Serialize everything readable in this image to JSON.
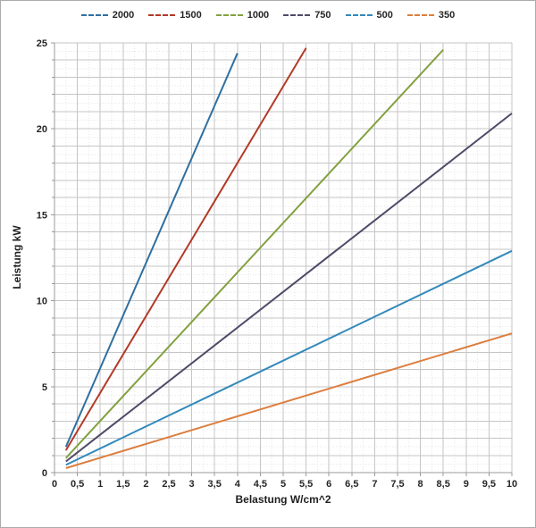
{
  "chart": {
    "background_color": "#FFFFFF",
    "border_color": "#ABABAB",
    "axis_line_color": "#9B9B9B",
    "major_grid_color": "#C6C6C6",
    "minor_grid_color": "#E6E6E6",
    "tick_label_color": "#262626"
  },
  "chart_data": {
    "type": "line",
    "title": "",
    "xlabel": "Belastung W/cm^2",
    "ylabel": "Leistung kW",
    "xlim": [
      0,
      10
    ],
    "ylim": [
      0,
      25
    ],
    "x_tick_step": 0.5,
    "x_tick_labels": [
      "0",
      "0,5",
      "1",
      "1,5",
      "2",
      "2,5",
      "3",
      "3,5",
      "4",
      "4,5",
      "5",
      "5,5",
      "6",
      "6,5",
      "7",
      "7,5",
      "8",
      "8,5",
      "9",
      "9,5",
      "10"
    ],
    "y_tick_labels": [
      "0",
      "5",
      "10",
      "15",
      "20",
      "25"
    ],
    "y_label_step": 5,
    "grid": {
      "major_x_step": 0.5,
      "major_y_step": 1,
      "minor_x_step": 0.25,
      "minor_y_step": 0.5,
      "grid_on": true
    },
    "legend_position": "top-center",
    "series": [
      {
        "name": "2000",
        "color": "#2F6F9F",
        "points": [
          [
            0.25,
            1.5
          ],
          [
            4.0,
            24.4
          ]
        ]
      },
      {
        "name": "1500",
        "color": "#B23A27",
        "points": [
          [
            0.25,
            1.3
          ],
          [
            5.5,
            24.7
          ]
        ]
      },
      {
        "name": "1000",
        "color": "#83A140",
        "points": [
          [
            0.25,
            0.85
          ],
          [
            8.5,
            24.6
          ]
        ]
      },
      {
        "name": "750",
        "color": "#4F4A68",
        "points": [
          [
            0.25,
            0.65
          ],
          [
            10.0,
            20.9
          ]
        ]
      },
      {
        "name": "500",
        "color": "#3289BA",
        "points": [
          [
            0.25,
            0.45
          ],
          [
            10.0,
            12.9
          ]
        ]
      },
      {
        "name": "350",
        "color": "#DC7E3F",
        "points": [
          [
            0.25,
            0.26
          ],
          [
            10.0,
            8.1
          ]
        ]
      }
    ]
  }
}
